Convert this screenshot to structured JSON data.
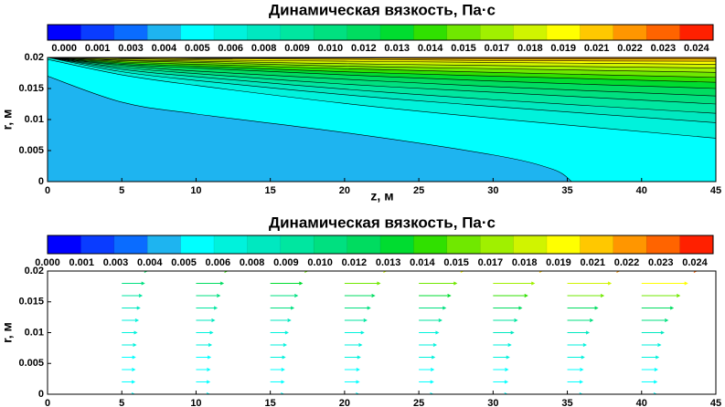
{
  "chart_data": [
    {
      "type": "contour",
      "title": "Динамическая вязкость, Па·с",
      "xlabel": "z, м",
      "ylabel": "r, м",
      "xlim": [
        0,
        45
      ],
      "ylim": [
        0,
        0.02
      ],
      "xticks": [
        0,
        5,
        10,
        15,
        20,
        25,
        30,
        35,
        40,
        45
      ],
      "yticks": [
        0,
        0.005,
        0.01,
        0.015,
        0.02
      ],
      "colorbar": {
        "ticks": [
          {
            "value": 0,
            "label": "0.000"
          },
          {
            "value": 0.001,
            "label": "0.001"
          },
          {
            "value": 0.003,
            "label": "0.003"
          },
          {
            "value": 0.004,
            "label": "0.004"
          },
          {
            "value": 0.005,
            "label": "0.005"
          },
          {
            "value": 0.006,
            "label": "0.006"
          },
          {
            "value": 0.008,
            "label": "0.008"
          },
          {
            "value": 0.009,
            "label": "0.009"
          },
          {
            "value": 0.01,
            "label": "0.010"
          },
          {
            "value": 0.012,
            "label": "0.012"
          },
          {
            "value": 0.013,
            "label": "0.013"
          },
          {
            "value": 0.014,
            "label": "0.014"
          },
          {
            "value": 0.015,
            "label": "0.015"
          },
          {
            "value": 0.017,
            "label": "0.017"
          },
          {
            "value": 0.018,
            "label": "0.018"
          },
          {
            "value": 0.019,
            "label": "0.019"
          },
          {
            "value": 0.021,
            "label": "0.021"
          },
          {
            "value": 0.022,
            "label": "0.022"
          },
          {
            "value": 0.023,
            "label": "0.023"
          },
          {
            "value": 0.024,
            "label": "0.024"
          }
        ],
        "colors": [
          "#0000ff",
          "#0a3cff",
          "#0a6cff",
          "#1eb4f0",
          "#00ffff",
          "#00f2dc",
          "#00e8c0",
          "#00e6a0",
          "#00e080",
          "#00dc60",
          "#00dc30",
          "#30e000",
          "#70e800",
          "#a0f000",
          "#d0f400",
          "#ffff00",
          "#ffc800",
          "#ff9600",
          "#ff6400",
          "#ff2000"
        ]
      },
      "base_level": 0.004,
      "line_color": "#000000",
      "contours": [
        {
          "level": 0.005,
          "x": [
            0,
            5,
            10,
            20,
            30,
            34,
            35.3
          ],
          "y": [
            0.017,
            0.0128,
            0.0109,
            0.0079,
            0.0043,
            0.002,
            0
          ]
        },
        {
          "level": 0.006,
          "x": [
            0,
            5,
            10,
            20,
            30,
            45
          ],
          "y": [
            0.0197,
            0.0172,
            0.0155,
            0.0126,
            0.0102,
            0.007
          ]
        },
        {
          "level": 0.008,
          "x": [
            0,
            5,
            10,
            20,
            30,
            45
          ],
          "y": [
            0.02,
            0.0177,
            0.0163,
            0.014,
            0.0121,
            0.0095
          ]
        },
        {
          "level": 0.009,
          "x": [
            0,
            5,
            10,
            20,
            30,
            45
          ],
          "y": [
            0.02,
            0.0181,
            0.0169,
            0.0149,
            0.0132,
            0.011
          ]
        },
        {
          "level": 0.01,
          "x": [
            0,
            5,
            10,
            20,
            30,
            45
          ],
          "y": [
            0.02,
            0.0184,
            0.0174,
            0.0157,
            0.0144,
            0.0125
          ]
        },
        {
          "level": 0.012,
          "x": [
            0,
            5,
            10,
            20,
            30,
            45
          ],
          "y": [
            0.02,
            0.0187,
            0.0178,
            0.0165,
            0.0153,
            0.0138
          ]
        },
        {
          "level": 0.013,
          "x": [
            0,
            5,
            10,
            20,
            30,
            45
          ],
          "y": [
            0.02,
            0.0189,
            0.0183,
            0.0172,
            0.0162,
            0.015
          ]
        },
        {
          "level": 0.014,
          "x": [
            0,
            5,
            10,
            20,
            30,
            45
          ],
          "y": [
            0.02,
            0.0191,
            0.0186,
            0.0177,
            0.017,
            0.016
          ]
        },
        {
          "level": 0.015,
          "x": [
            0,
            5,
            10,
            20,
            30,
            45
          ],
          "y": [
            0.02,
            0.0193,
            0.0189,
            0.0182,
            0.0176,
            0.0168
          ]
        },
        {
          "level": 0.017,
          "x": [
            0,
            5,
            10,
            20,
            30,
            45
          ],
          "y": [
            0.02,
            0.0195,
            0.0192,
            0.0186,
            0.0182,
            0.0176
          ]
        },
        {
          "level": 0.018,
          "x": [
            0,
            5,
            10,
            20,
            30,
            45
          ],
          "y": [
            0.02,
            0.0196,
            0.0194,
            0.019,
            0.0187,
            0.0183
          ]
        },
        {
          "level": 0.019,
          "x": [
            0,
            5,
            10,
            20,
            30,
            45
          ],
          "y": [
            0.02,
            0.0198,
            0.0196,
            0.0194,
            0.0192,
            0.0189
          ]
        },
        {
          "level": 0.021,
          "x": [
            0,
            5,
            10,
            20,
            30,
            45
          ],
          "y": [
            0.02,
            0.0199,
            0.0198,
            0.0197,
            0.0195,
            0.0194
          ]
        },
        {
          "level": 0.022,
          "x": [
            0,
            5,
            10,
            20,
            30,
            45
          ],
          "y": [
            0.02,
            0.02,
            0.0199,
            0.0199,
            0.0198,
            0.0198
          ]
        }
      ]
    },
    {
      "type": "vector",
      "title": "Динамическая вязкость, Па·с",
      "ylabel": "r, м",
      "xlim": [
        0,
        45
      ],
      "ylim": [
        0,
        0.02
      ],
      "xticks": [
        0,
        5,
        10,
        15,
        20,
        25,
        30,
        35,
        40,
        45
      ],
      "yticks": [
        0,
        0.005,
        0.01,
        0.015,
        0.02
      ],
      "colorbar": {
        "ticks": [
          {
            "value": 0,
            "label": "0.000"
          },
          {
            "value": 0.001,
            "label": "0.001"
          },
          {
            "value": 0.003,
            "label": "0.003"
          },
          {
            "value": 0.004,
            "label": "0.004"
          },
          {
            "value": 0.005,
            "label": "0.005"
          },
          {
            "value": 0.006,
            "label": "0.006"
          },
          {
            "value": 0.008,
            "label": "0.008"
          },
          {
            "value": 0.009,
            "label": "0.009"
          },
          {
            "value": 0.01,
            "label": "0.010"
          },
          {
            "value": 0.012,
            "label": "0.012"
          },
          {
            "value": 0.013,
            "label": "0.013"
          },
          {
            "value": 0.014,
            "label": "0.014"
          },
          {
            "value": 0.015,
            "label": "0.015"
          },
          {
            "value": 0.017,
            "label": "0.017"
          },
          {
            "value": 0.018,
            "label": "0.018"
          },
          {
            "value": 0.019,
            "label": "0.019"
          },
          {
            "value": 0.021,
            "label": "0.021"
          },
          {
            "value": 0.022,
            "label": "0.022"
          },
          {
            "value": 0.023,
            "label": "0.023"
          },
          {
            "value": 0.024,
            "label": "0.024"
          }
        ],
        "colors": [
          "#0000ff",
          "#0a3cff",
          "#0a6cff",
          "#1eb4f0",
          "#00ffff",
          "#00f2dc",
          "#00e8c0",
          "#00e6a0",
          "#00e080",
          "#00dc60",
          "#00dc30",
          "#30e000",
          "#70e800",
          "#a0f000",
          "#d0f400",
          "#ffff00",
          "#ffc800",
          "#ff9600",
          "#ff6400",
          "#ff2000"
        ]
      },
      "r": [
        0,
        0.002,
        0.004,
        0.006,
        0.008,
        0.01,
        0.012,
        0.014,
        0.016,
        0.018,
        0.02
      ],
      "stations": [
        {
          "z": 5,
          "length": [
            0.85,
            0.85,
            0.87,
            0.89,
            0.94,
            1.0,
            1.09,
            1.2,
            1.34,
            1.5,
            1.7
          ],
          "mu": [
            0.005,
            0.005,
            0.005,
            0.005,
            0.006,
            0.006,
            0.007,
            0.008,
            0.009,
            0.01,
            0.012
          ]
        },
        {
          "z": 10,
          "length": [
            0.9,
            0.9,
            0.92,
            0.96,
            1.02,
            1.11,
            1.23,
            1.39,
            1.59,
            1.82,
            2.1
          ],
          "mu": [
            0.005,
            0.005,
            0.005,
            0.005,
            0.006,
            0.007,
            0.008,
            0.009,
            0.01,
            0.012,
            0.014
          ]
        },
        {
          "z": 15,
          "length": [
            0.9,
            0.91,
            0.93,
            0.98,
            1.06,
            1.18,
            1.35,
            1.56,
            1.82,
            2.13,
            2.5
          ],
          "mu": [
            0.005,
            0.005,
            0.005,
            0.006,
            0.006,
            0.007,
            0.008,
            0.01,
            0.011,
            0.013,
            0.016
          ]
        },
        {
          "z": 20,
          "length": [
            0.95,
            0.96,
            0.98,
            1.04,
            1.14,
            1.28,
            1.47,
            1.71,
            2.01,
            2.37,
            2.8
          ],
          "mu": [
            0.005,
            0.005,
            0.005,
            0.006,
            0.006,
            0.007,
            0.009,
            0.01,
            0.012,
            0.015,
            0.018
          ]
        },
        {
          "z": 25,
          "length": [
            0.95,
            0.96,
            0.99,
            1.05,
            1.16,
            1.31,
            1.52,
            1.79,
            2.12,
            2.53,
            3.0
          ],
          "mu": [
            0.005,
            0.005,
            0.005,
            0.006,
            0.006,
            0.007,
            0.009,
            0.011,
            0.013,
            0.016,
            0.019
          ]
        },
        {
          "z": 30,
          "length": [
            0.95,
            0.96,
            0.99,
            1.07,
            1.19,
            1.37,
            1.61,
            1.91,
            2.3,
            2.76,
            3.3
          ],
          "mu": [
            0.005,
            0.005,
            0.005,
            0.006,
            0.007,
            0.008,
            0.009,
            0.012,
            0.014,
            0.017,
            0.021
          ]
        },
        {
          "z": 35,
          "length": [
            1.0,
            1.01,
            1.04,
            1.12,
            1.25,
            1.44,
            1.7,
            2.03,
            2.43,
            2.92,
            3.5
          ],
          "mu": [
            0.005,
            0.005,
            0.005,
            0.006,
            0.007,
            0.008,
            0.01,
            0.012,
            0.015,
            0.018,
            0.022
          ]
        },
        {
          "z": 40,
          "length": [
            1.0,
            1.01,
            1.05,
            1.13,
            1.27,
            1.48,
            1.75,
            2.11,
            2.55,
            3.07,
            3.7
          ],
          "mu": [
            0.005,
            0.005,
            0.005,
            0.006,
            0.007,
            0.008,
            0.01,
            0.012,
            0.015,
            0.019,
            0.023
          ]
        }
      ]
    }
  ]
}
